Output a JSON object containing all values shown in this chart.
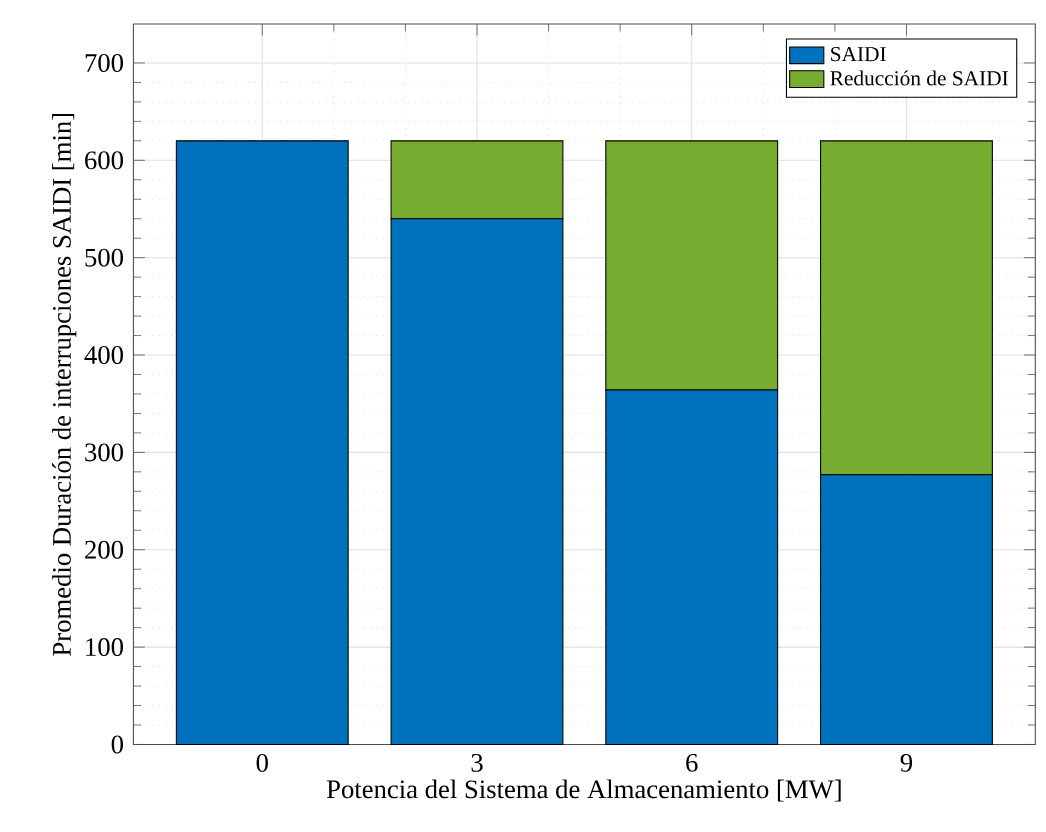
{
  "chart_data": {
    "type": "bar",
    "stacked": true,
    "xlabel": "Potencia del Sistema de Almacenamiento [MW]",
    "ylabel": "Promedio Duración de interrupciones SAIDI [min]",
    "categories": [
      "0",
      "3",
      "6",
      "9"
    ],
    "series": [
      {
        "name": "SAIDI",
        "color": "#0072bd",
        "values": [
          620,
          540,
          364,
          277
        ]
      },
      {
        "name": "Reducción de SAIDI",
        "color": "#77ac30",
        "values": [
          0,
          80,
          256,
          343
        ]
      }
    ],
    "ylim": [
      0,
      740
    ],
    "yticks": [
      0,
      100,
      200,
      300,
      400,
      500,
      600,
      700
    ],
    "grid": true,
    "legend": "top right"
  }
}
